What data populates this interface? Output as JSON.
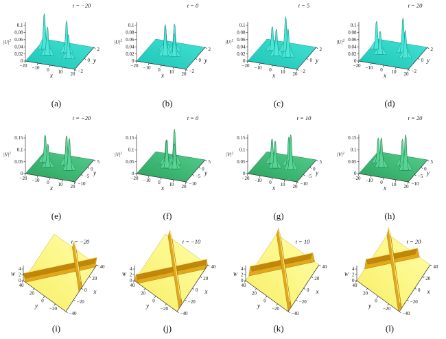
{
  "figure": {
    "background": "#ffffff",
    "styles": {
      "cyan": {
        "grad_top": "#43e2d3",
        "grad_bottom": "#1cc4b5",
        "plane_edge": "#0a9c8f",
        "spike_fill": "#4ae6d7",
        "spike_stroke": "#0b837a",
        "axis": "#333333",
        "text": "#111111"
      },
      "green": {
        "grad_top": "#55cd8e",
        "grad_bottom": "#2aa35d",
        "plane_edge": "#1d7a48",
        "spike_fill": "#58d494",
        "spike_stroke": "#156b3e",
        "axis": "#333333",
        "text": "#111111"
      },
      "yellow": {
        "grad_top": "#ffffa8",
        "grad_bottom": "#f8ee65",
        "plane_edge": "#c9b23c",
        "ridge_base": "#b67f06",
        "ridge_mid": "#e0a81a",
        "ridge_deep": "#c18709",
        "ridge_edge": "#8a5f04",
        "ridge_crest": "#ffee8e",
        "axis": "#333333",
        "text": "#111111"
      }
    }
  },
  "chart_data": [
    {
      "type": "surface3d",
      "caption": "(a)",
      "title": "t = −20",
      "style": "cyan",
      "geom": "A",
      "xlabel": "x",
      "ylabel": "y",
      "zlabel": "|U|",
      "zlabel_sup": "2",
      "x_ticks": [
        "−20",
        "−10",
        "0",
        "10",
        "20"
      ],
      "x_range": [
        -20,
        20
      ],
      "y_ticks": [
        "−2",
        "0",
        "2"
      ],
      "y_range": [
        -2,
        2
      ],
      "z_ticks": [
        "0",
        "0.02",
        "0.04",
        "0.06",
        "0.08",
        "0.1"
      ],
      "z_max": 0.1,
      "peaks": [
        {
          "x": -14,
          "y": 0.4,
          "z": 0.1
        },
        {
          "x": -8,
          "y": -0.5,
          "z": 0.08
        },
        {
          "x": 4,
          "y": 0.4,
          "z": 0.09
        },
        {
          "x": 9,
          "y": -0.5,
          "z": 0.068
        }
      ]
    },
    {
      "type": "surface3d",
      "caption": "(b)",
      "title": "t = 0",
      "style": "cyan",
      "geom": "A",
      "xlabel": "x",
      "ylabel": "y",
      "zlabel": "|U|",
      "zlabel_sup": "2",
      "x_ticks": [
        "−20",
        "−10",
        "0",
        "10",
        "20"
      ],
      "x_range": [
        -20,
        20
      ],
      "y_ticks": [
        "−2",
        "0",
        "2"
      ],
      "y_range": [
        -2,
        2
      ],
      "z_ticks": [
        "0",
        "0.02",
        "0.04",
        "0.06",
        "0.08",
        "0.1"
      ],
      "z_max": 0.1,
      "peaks": [
        {
          "x": -6,
          "y": 0.4,
          "z": 0.07
        },
        {
          "x": -3,
          "y": -0.4,
          "z": 0.088
        },
        {
          "x": 1,
          "y": 0.5,
          "z": 0.078
        },
        {
          "x": 4,
          "y": -0.3,
          "z": 0.064
        }
      ]
    },
    {
      "type": "surface3d",
      "caption": "(c)",
      "title": "t = 5",
      "style": "cyan",
      "geom": "A",
      "xlabel": "x",
      "ylabel": "y",
      "zlabel": "|U|",
      "zlabel_sup": "2",
      "x_ticks": [
        "−20",
        "−10",
        "0",
        "10",
        "20"
      ],
      "x_range": [
        -20,
        20
      ],
      "y_ticks": [
        "−2",
        "0",
        "2"
      ],
      "y_range": [
        -2,
        2
      ],
      "z_ticks": [
        "0",
        "0.02",
        "0.04",
        "0.06",
        "0.08",
        "0.1"
      ],
      "z_max": 0.1,
      "peaks": [
        {
          "x": -9,
          "y": 0.3,
          "z": 0.068
        },
        {
          "x": -3,
          "y": -0.4,
          "z": 0.075
        },
        {
          "x": 1,
          "y": 0.5,
          "z": 0.098
        },
        {
          "x": 6,
          "y": -0.3,
          "z": 0.08
        }
      ]
    },
    {
      "type": "surface3d",
      "caption": "(d)",
      "title": "t = 20",
      "style": "cyan",
      "geom": "A",
      "xlabel": "x",
      "ylabel": "y",
      "zlabel": "|U|",
      "zlabel_sup": "2",
      "x_ticks": [
        "−20",
        "−10",
        "0",
        "10",
        "20"
      ],
      "x_range": [
        -20,
        20
      ],
      "y_ticks": [
        "−2",
        "0",
        "2"
      ],
      "y_range": [
        -2,
        2
      ],
      "z_ticks": [
        "0",
        "0.02",
        "0.04",
        "0.06",
        "0.08",
        "0.1"
      ],
      "z_max": 0.1,
      "peaks": [
        {
          "x": -15,
          "y": 0.4,
          "z": 0.078
        },
        {
          "x": -9,
          "y": -0.4,
          "z": 0.066
        },
        {
          "x": 6,
          "y": 0.5,
          "z": 0.098
        },
        {
          "x": 11,
          "y": -0.3,
          "z": 0.078
        }
      ]
    },
    {
      "type": "surface3d",
      "caption": "(e)",
      "title": "t = −20",
      "style": "green",
      "geom": "A",
      "xlabel": "x",
      "ylabel": "y",
      "zlabel": "|V|",
      "zlabel_sup": "2",
      "x_ticks": [
        "−20",
        "−10",
        "0",
        "10",
        "20"
      ],
      "x_range": [
        -20,
        20
      ],
      "y_ticks": [
        "−10",
        "−5",
        "0",
        "5"
      ],
      "y_range": [
        -10,
        5
      ],
      "z_ticks": [
        "0",
        "0.05",
        "0.1",
        "0.15"
      ],
      "z_max": 0.15,
      "peaks": [
        {
          "x": -13,
          "y": -1.3,
          "z": 0.115
        },
        {
          "x": -8,
          "y": -4,
          "z": 0.098
        },
        {
          "x": 4,
          "y": -1,
          "z": 0.125
        },
        {
          "x": 9,
          "y": -3.7,
          "z": 0.135
        }
      ]
    },
    {
      "type": "surface3d",
      "caption": "(f)",
      "title": "t = 0",
      "style": "green",
      "geom": "A",
      "xlabel": "x",
      "ylabel": "y",
      "zlabel": "|V|",
      "zlabel_sup": "2",
      "x_ticks": [
        "−20",
        "−10",
        "0",
        "10",
        "20"
      ],
      "x_range": [
        -20,
        20
      ],
      "y_ticks": [
        "−10",
        "−5",
        "0",
        "5"
      ],
      "y_range": [
        -10,
        5
      ],
      "z_ticks": [
        "0",
        "0.05",
        "0.1",
        "0.15"
      ],
      "z_max": 0.15,
      "peaks": [
        {
          "x": -5,
          "y": -1.3,
          "z": 0.1
        },
        {
          "x": -2,
          "y": -3.7,
          "z": 0.12
        },
        {
          "x": 1,
          "y": -0.7,
          "z": 0.148
        },
        {
          "x": 4,
          "y": -3.4,
          "z": 0.105
        }
      ]
    },
    {
      "type": "surface3d",
      "caption": "(g)",
      "title": "t = 10",
      "style": "green",
      "geom": "A",
      "xlabel": "x",
      "ylabel": "y",
      "zlabel": "|V|",
      "zlabel_sup": "2",
      "x_ticks": [
        "−20",
        "−10",
        "0",
        "10",
        "20"
      ],
      "x_range": [
        -20,
        20
      ],
      "y_ticks": [
        "−10",
        "−5",
        "0",
        "5"
      ],
      "y_range": [
        -10,
        5
      ],
      "z_ticks": [
        "0",
        "0.05",
        "0.1",
        "0.15"
      ],
      "z_max": 0.15,
      "peaks": [
        {
          "x": -9,
          "y": -1.6,
          "z": 0.105
        },
        {
          "x": -4,
          "y": -4,
          "z": 0.115
        },
        {
          "x": 4,
          "y": -1,
          "z": 0.12
        },
        {
          "x": 8,
          "y": -3.4,
          "z": 0.148
        }
      ]
    },
    {
      "type": "surface3d",
      "caption": "(h)",
      "title": "t = 20",
      "style": "green",
      "geom": "A",
      "xlabel": "x",
      "ylabel": "y",
      "zlabel": "|V|",
      "zlabel_sup": "2",
      "x_ticks": [
        "−20",
        "−10",
        "0",
        "10",
        "20"
      ],
      "x_range": [
        -20,
        20
      ],
      "y_ticks": [
        "−10",
        "−5",
        "0",
        "5"
      ],
      "y_range": [
        -10,
        5
      ],
      "z_ticks": [
        "0",
        "0.05",
        "0.1",
        "0.15"
      ],
      "z_max": 0.15,
      "peaks": [
        {
          "x": -13,
          "y": -1.6,
          "z": 0.105
        },
        {
          "x": -8,
          "y": -4,
          "z": 0.125
        },
        {
          "x": 6,
          "y": -1,
          "z": 0.112
        },
        {
          "x": 11,
          "y": -3.4,
          "z": 0.15
        }
      ]
    },
    {
      "type": "surface3d",
      "caption": "(i)",
      "title": "t = −20",
      "style": "yellow",
      "geom": "B",
      "xlabel": "x",
      "ylabel": "y",
      "zlabel": "W",
      "zlabel_sup": "",
      "x_ticks": [
        "−40",
        "−20",
        "0",
        "20",
        "40"
      ],
      "x_range": [
        -40,
        40
      ],
      "y_ticks": [
        "−20",
        "0",
        "20",
        "40"
      ],
      "y_range": [
        -40,
        40
      ],
      "z_ticks": [
        "0",
        "2",
        "4"
      ],
      "z_max": 4,
      "ridges": [
        {
          "along": "x+y",
          "c": 0,
          "height": 2.6
        },
        {
          "along": "x-y",
          "c": 38,
          "height": 2.6
        }
      ]
    },
    {
      "type": "surface3d",
      "caption": "(j)",
      "title": "t = −10",
      "style": "yellow",
      "geom": "B",
      "xlabel": "x",
      "ylabel": "y",
      "zlabel": "W",
      "zlabel_sup": "",
      "x_ticks": [
        "−40",
        "−20",
        "0",
        "20",
        "40"
      ],
      "x_range": [
        -40,
        40
      ],
      "y_ticks": [
        "−20",
        "0",
        "20",
        "40"
      ],
      "y_range": [
        -40,
        40
      ],
      "z_ticks": [
        "0",
        "2",
        "4"
      ],
      "z_max": 4,
      "ridges": [
        {
          "along": "x+y",
          "c": -3,
          "height": 2.6
        },
        {
          "along": "x-y",
          "c": 9,
          "height": 2.6
        }
      ]
    },
    {
      "type": "surface3d",
      "caption": "(k)",
      "title": "t = 10",
      "style": "yellow",
      "geom": "B",
      "xlabel": "x",
      "ylabel": "y",
      "zlabel": "W",
      "zlabel_sup": "",
      "x_ticks": [
        "−40",
        "−20",
        "0",
        "20",
        "40"
      ],
      "x_range": [
        -40,
        40
      ],
      "y_ticks": [
        "−20",
        "0",
        "20",
        "40"
      ],
      "y_range": [
        -40,
        40
      ],
      "z_ticks": [
        "0",
        "2",
        "4"
      ],
      "z_max": 4,
      "ridges": [
        {
          "along": "x+y",
          "c": 12,
          "height": 2.6
        },
        {
          "along": "x-y",
          "c": 4,
          "height": 2.6
        }
      ]
    },
    {
      "type": "surface3d",
      "caption": "(l)",
      "title": "t = 20",
      "style": "yellow",
      "geom": "B",
      "xlabel": "x",
      "ylabel": "y",
      "zlabel": "W",
      "zlabel_sup": "",
      "x_ticks": [
        "−40",
        "−20",
        "0",
        "20",
        "40"
      ],
      "x_range": [
        -40,
        40
      ],
      "y_ticks": [
        "−20",
        "0",
        "20",
        "40"
      ],
      "y_range": [
        -40,
        40
      ],
      "z_ticks": [
        "0",
        "2",
        "4"
      ],
      "z_max": 4,
      "ridges": [
        {
          "along": "x+y",
          "c": 24,
          "height": 2.6
        },
        {
          "along": "x-y",
          "c": 2,
          "height": 2.6
        }
      ]
    }
  ]
}
